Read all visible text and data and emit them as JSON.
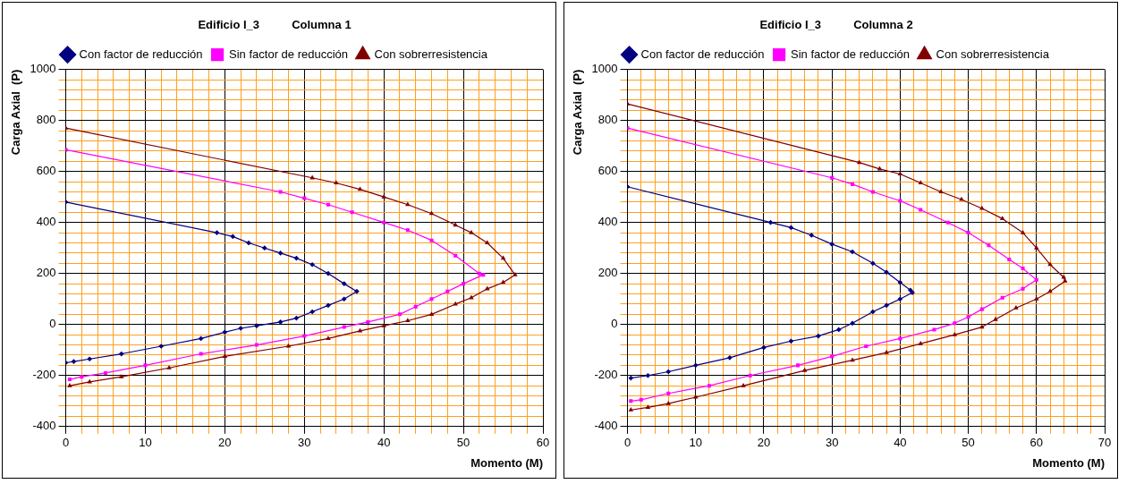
{
  "chart_data": [
    {
      "type": "line",
      "title": "Edificio I_3          Columna 1",
      "xlabel": "Momento (M)",
      "ylabel": "Carga Axial  (P)",
      "legend": "top",
      "grid": true,
      "xlim": [
        0,
        60
      ],
      "ylim": [
        -400,
        1000
      ],
      "xticks": [
        0,
        {
          "value": 2,
          "label": null
        },
        {
          "value": 4,
          "label": null
        },
        {
          "value": 6,
          "label": null
        },
        {
          "value": 8,
          "label": null
        },
        10,
        {
          "value": 12,
          "label": null
        },
        {
          "value": 14,
          "label": null
        },
        {
          "value": 16,
          "label": null
        },
        {
          "value": 18,
          "label": null
        },
        20,
        {
          "value": 22,
          "label": null
        },
        {
          "value": 24,
          "label": null
        },
        {
          "value": 26,
          "label": null
        },
        {
          "value": 28,
          "label": null
        },
        30,
        {
          "value": 32,
          "label": null
        },
        {
          "value": 34,
          "label": null
        },
        {
          "value": 36,
          "label": null
        },
        {
          "value": 38,
          "label": null
        },
        40,
        {
          "value": 42,
          "label": null
        },
        {
          "value": 44,
          "label": null
        },
        {
          "value": 46,
          "label": null
        },
        {
          "value": 48,
          "label": null
        },
        50,
        {
          "value": 52,
          "label": null
        },
        {
          "value": 54,
          "label": null
        },
        {
          "value": 56,
          "label": null
        },
        {
          "value": 58,
          "label": null
        },
        60
      ],
      "yticks": [
        -400,
        {
          "value": -360,
          "label": null
        },
        {
          "value": -320,
          "label": null
        },
        {
          "value": -280,
          "label": null
        },
        {
          "value": -240,
          "label": null
        },
        -200,
        {
          "value": -160,
          "label": null
        },
        {
          "value": -120,
          "label": null
        },
        {
          "value": -80,
          "label": null
        },
        {
          "value": -40,
          "label": null
        },
        0,
        {
          "value": 40,
          "label": null
        },
        {
          "value": 80,
          "label": null
        },
        {
          "value": 120,
          "label": null
        },
        {
          "value": 160,
          "label": null
        },
        200,
        {
          "value": 240,
          "label": null
        },
        {
          "value": 280,
          "label": null
        },
        {
          "value": 320,
          "label": null
        },
        {
          "value": 360,
          "label": null
        },
        400,
        {
          "value": 440,
          "label": null
        },
        {
          "value": 480,
          "label": null
        },
        {
          "value": 520,
          "label": null
        },
        {
          "value": 560,
          "label": null
        },
        600,
        {
          "value": 640,
          "label": null
        },
        {
          "value": 680,
          "label": null
        },
        {
          "value": 720,
          "label": null
        },
        {
          "value": 760,
          "label": null
        },
        800,
        {
          "value": 840,
          "label": null
        },
        {
          "value": 880,
          "label": null
        },
        {
          "value": 920,
          "label": null
        },
        {
          "value": 960,
          "label": null
        },
        1000
      ],
      "series": [
        {
          "name": "Con factor de reducción",
          "color": "#000080",
          "marker": "diamond",
          "x": [
            0,
            19,
            21,
            23,
            25,
            27,
            29,
            31,
            33,
            35,
            36.6,
            35,
            33,
            31,
            29,
            27,
            24,
            22,
            20,
            17,
            12,
            7,
            3,
            1,
            0
          ],
          "values": [
            480,
            360,
            345,
            320,
            300,
            280,
            260,
            235,
            200,
            160,
            130,
            100,
            75,
            50,
            25,
            10,
            -5,
            -15,
            -30,
            -55,
            -85,
            -115,
            -135,
            -145,
            -150
          ]
        },
        {
          "name": "Sin factor de reducción",
          "color": "#ff00ff",
          "marker": "square",
          "x": [
            0,
            27,
            30,
            33,
            36,
            40,
            43,
            46,
            49,
            52,
            52.5,
            50,
            48,
            46,
            44,
            42,
            38,
            35,
            30,
            24,
            17,
            10,
            5,
            2,
            0.5
          ],
          "values": [
            685,
            520,
            495,
            470,
            440,
            400,
            370,
            330,
            270,
            200,
            195,
            160,
            130,
            100,
            70,
            40,
            10,
            -10,
            -45,
            -80,
            -115,
            -160,
            -190,
            -205,
            -215
          ]
        },
        {
          "name": "Con sobrerresistencia",
          "color": "#800000",
          "marker": "triangle",
          "x": [
            0,
            31,
            34,
            37,
            40,
            43,
            46,
            49,
            51,
            53,
            55,
            56.5,
            55,
            53,
            51,
            49,
            46,
            43,
            40,
            37,
            33,
            28,
            20,
            13,
            7,
            3,
            0.5
          ],
          "values": [
            770,
            575,
            555,
            530,
            500,
            470,
            435,
            390,
            360,
            320,
            260,
            195,
            165,
            140,
            105,
            80,
            40,
            15,
            -5,
            -25,
            -55,
            -85,
            -125,
            -170,
            -205,
            -225,
            -240
          ]
        }
      ]
    },
    {
      "type": "line",
      "title": "Edificio I_3          Columna 2",
      "xlabel": "Momento (M)",
      "ylabel": "Carga Axial  (P)",
      "legend": "top",
      "grid": true,
      "xlim": [
        0,
        70
      ],
      "ylim": [
        -400,
        1000
      ],
      "xticks": [
        0,
        {
          "value": 2,
          "label": null
        },
        {
          "value": 4,
          "label": null
        },
        {
          "value": 6,
          "label": null
        },
        {
          "value": 8,
          "label": null
        },
        10,
        {
          "value": 12,
          "label": null
        },
        {
          "value": 14,
          "label": null
        },
        {
          "value": 16,
          "label": null
        },
        {
          "value": 18,
          "label": null
        },
        20,
        {
          "value": 22,
          "label": null
        },
        {
          "value": 24,
          "label": null
        },
        {
          "value": 26,
          "label": null
        },
        {
          "value": 28,
          "label": null
        },
        30,
        {
          "value": 32,
          "label": null
        },
        {
          "value": 34,
          "label": null
        },
        {
          "value": 36,
          "label": null
        },
        {
          "value": 38,
          "label": null
        },
        40,
        {
          "value": 42,
          "label": null
        },
        {
          "value": 44,
          "label": null
        },
        {
          "value": 46,
          "label": null
        },
        {
          "value": 48,
          "label": null
        },
        50,
        {
          "value": 52,
          "label": null
        },
        {
          "value": 54,
          "label": null
        },
        {
          "value": 56,
          "label": null
        },
        {
          "value": 58,
          "label": null
        },
        60,
        {
          "value": 62,
          "label": null
        },
        {
          "value": 64,
          "label": null
        },
        {
          "value": 66,
          "label": null
        },
        {
          "value": 68,
          "label": null
        },
        70
      ],
      "yticks": [
        -400,
        {
          "value": -360,
          "label": null
        },
        {
          "value": -320,
          "label": null
        },
        {
          "value": -280,
          "label": null
        },
        {
          "value": -240,
          "label": null
        },
        -200,
        {
          "value": -160,
          "label": null
        },
        {
          "value": -120,
          "label": null
        },
        {
          "value": -80,
          "label": null
        },
        {
          "value": -40,
          "label": null
        },
        0,
        {
          "value": 40,
          "label": null
        },
        {
          "value": 80,
          "label": null
        },
        {
          "value": 120,
          "label": null
        },
        {
          "value": 160,
          "label": null
        },
        200,
        {
          "value": 240,
          "label": null
        },
        {
          "value": 280,
          "label": null
        },
        {
          "value": 320,
          "label": null
        },
        {
          "value": 360,
          "label": null
        },
        400,
        {
          "value": 440,
          "label": null
        },
        {
          "value": 480,
          "label": null
        },
        {
          "value": 520,
          "label": null
        },
        {
          "value": 560,
          "label": null
        },
        600,
        {
          "value": 640,
          "label": null
        },
        {
          "value": 680,
          "label": null
        },
        {
          "value": 720,
          "label": null
        },
        {
          "value": 760,
          "label": null
        },
        800,
        {
          "value": 840,
          "label": null
        },
        {
          "value": 880,
          "label": null
        },
        {
          "value": 920,
          "label": null
        },
        {
          "value": 960,
          "label": null
        },
        1000
      ],
      "series": [
        {
          "name": "Con factor de reducción",
          "color": "#000080",
          "marker": "diamond",
          "x": [
            0,
            21,
            24,
            27,
            30,
            33,
            36,
            38,
            40,
            41.5,
            41.8,
            40,
            38,
            36,
            33,
            31,
            28,
            24,
            20,
            15,
            10,
            6,
            3,
            0.5
          ],
          "values": [
            540,
            400,
            380,
            350,
            315,
            285,
            240,
            205,
            165,
            135,
            125,
            100,
            75,
            50,
            5,
            -20,
            -45,
            -65,
            -90,
            -130,
            -160,
            -185,
            -200,
            -210
          ]
        },
        {
          "name": "Sin factor de reducción",
          "color": "#ff00ff",
          "marker": "square",
          "x": [
            0,
            30,
            33,
            36,
            40,
            43,
            47,
            50,
            53,
            56,
            58,
            60,
            58,
            55,
            52,
            50,
            48,
            45,
            40,
            35,
            30,
            25,
            18,
            12,
            6,
            2,
            0.5
          ],
          "values": [
            770,
            575,
            550,
            520,
            485,
            450,
            400,
            360,
            310,
            255,
            220,
            175,
            140,
            105,
            60,
            30,
            5,
            -20,
            -55,
            -85,
            -125,
            -160,
            -200,
            -240,
            -270,
            -295,
            -300
          ]
        },
        {
          "name": "Con sobrerresistencia",
          "color": "#800000",
          "marker": "triangle",
          "x": [
            0,
            34,
            37,
            40,
            43,
            46,
            49,
            52,
            55,
            58,
            60,
            62,
            64,
            64.2,
            62,
            60,
            57,
            54,
            52,
            48,
            43,
            38,
            33,
            26,
            17,
            10,
            6,
            3,
            0.5
          ],
          "values": [
            865,
            635,
            610,
            590,
            555,
            520,
            490,
            455,
            415,
            360,
            300,
            235,
            185,
            170,
            130,
            100,
            65,
            20,
            -10,
            -40,
            -75,
            -110,
            -140,
            -180,
            -240,
            -285,
            -310,
            -325,
            -335
          ]
        }
      ]
    }
  ]
}
